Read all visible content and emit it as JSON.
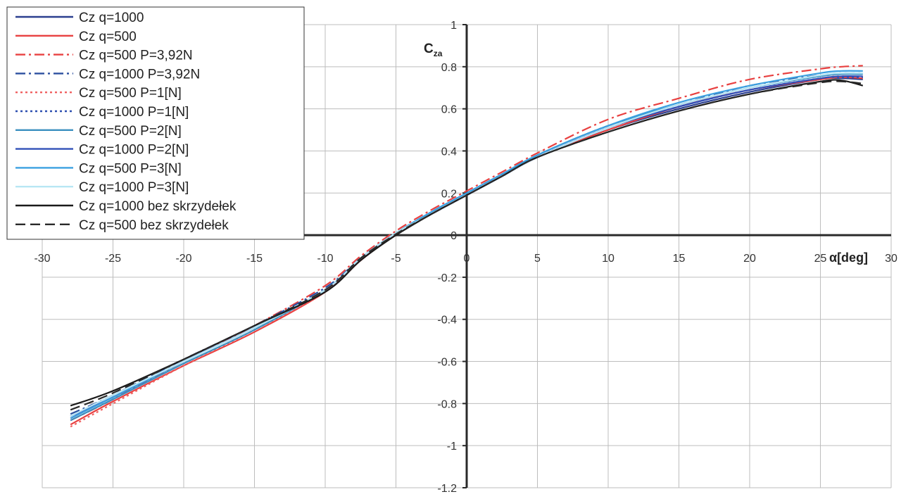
{
  "chart_data": {
    "type": "line",
    "title": "",
    "xlabel": "α[deg]",
    "ylabel": "C",
    "ylabel_sub": "za",
    "xlim": [
      -30,
      30
    ],
    "ylim": [
      -1.2,
      1
    ],
    "x_ticks": [
      -30,
      -25,
      -20,
      -15,
      -10,
      -5,
      0,
      5,
      10,
      15,
      20,
      25,
      30
    ],
    "y_ticks": [
      1,
      0.8,
      0.6,
      0.4,
      0.2,
      0,
      -0.2,
      -0.4,
      -0.6,
      -0.8,
      -1,
      -1.2
    ],
    "x_tick_labels": [
      "-30",
      "-25",
      "-20",
      "-15",
      "-10",
      "-5",
      "0",
      "5",
      "10",
      "15",
      "20",
      "25",
      "30"
    ],
    "y_tick_labels": [
      "1",
      "0.8",
      "0.6",
      "0.4",
      "0.2",
      "0",
      "-0.2",
      "-0.4",
      "-0.6",
      "-0.8",
      "-1",
      "-1.2"
    ],
    "grid": true,
    "legend_position": "top-left",
    "x": [
      -28,
      -25,
      -20,
      -15,
      -10,
      -7.5,
      -5,
      -2.5,
      0,
      2.5,
      5,
      10,
      15,
      20,
      25,
      26.5,
      28
    ],
    "series": [
      {
        "name": "Cz q=1000",
        "color": "#2b3f8f",
        "dash": "solid",
        "values": [
          -0.87,
          -0.77,
          -0.6,
          -0.44,
          -0.26,
          -0.11,
          0.01,
          0.1,
          0.19,
          0.28,
          0.37,
          0.5,
          0.6,
          0.68,
          0.74,
          0.745,
          0.74
        ]
      },
      {
        "name": "Cz q=500",
        "color": "#e84040",
        "dash": "solid",
        "values": [
          -0.9,
          -0.79,
          -0.62,
          -0.46,
          -0.27,
          -0.12,
          0.005,
          0.1,
          0.19,
          0.28,
          0.37,
          0.5,
          0.61,
          0.69,
          0.74,
          0.75,
          0.745
        ]
      },
      {
        "name": "Cz q=500 P=3,92N",
        "color": "#e84040",
        "dash": "dashdot",
        "values": [
          -0.88,
          -0.78,
          -0.6,
          -0.43,
          -0.24,
          -0.1,
          0.02,
          0.12,
          0.21,
          0.3,
          0.39,
          0.55,
          0.65,
          0.74,
          0.79,
          0.8,
          0.805
        ]
      },
      {
        "name": "Cz q=1000 P=3,92N",
        "color": "#2b4f9f",
        "dash": "dashdot",
        "values": [
          -0.85,
          -0.76,
          -0.59,
          -0.43,
          -0.25,
          -0.11,
          0.01,
          0.11,
          0.2,
          0.29,
          0.38,
          0.52,
          0.62,
          0.71,
          0.76,
          0.77,
          0.77
        ]
      },
      {
        "name": "Cz q=500 P=1[N]",
        "color": "#f06060",
        "dash": "dot",
        "values": [
          -0.91,
          -0.8,
          -0.62,
          -0.45,
          -0.27,
          -0.12,
          0.005,
          0.1,
          0.19,
          0.28,
          0.37,
          0.51,
          0.61,
          0.69,
          0.745,
          0.755,
          0.75
        ]
      },
      {
        "name": "Cz q=1000 P=1[N]",
        "color": "#2d4fb0",
        "dash": "dot",
        "values": [
          -0.86,
          -0.77,
          -0.6,
          -0.44,
          -0.26,
          -0.11,
          0.01,
          0.1,
          0.19,
          0.28,
          0.37,
          0.51,
          0.61,
          0.69,
          0.745,
          0.75,
          0.75
        ]
      },
      {
        "name": "Cz q=500 P=2[N]",
        "color": "#3a8fbf",
        "dash": "solid",
        "values": [
          -0.88,
          -0.78,
          -0.61,
          -0.45,
          -0.26,
          -0.11,
          0.01,
          0.1,
          0.19,
          0.28,
          0.38,
          0.52,
          0.62,
          0.7,
          0.755,
          0.765,
          0.765
        ]
      },
      {
        "name": "Cz q=1000 P=2[N]",
        "color": "#3050b8",
        "dash": "solid",
        "values": [
          -0.86,
          -0.77,
          -0.6,
          -0.44,
          -0.26,
          -0.11,
          0.01,
          0.1,
          0.19,
          0.28,
          0.37,
          0.51,
          0.61,
          0.69,
          0.745,
          0.755,
          0.755
        ]
      },
      {
        "name": "Cz q=500 P=3[N]",
        "color": "#3aa0e0",
        "dash": "solid",
        "values": [
          -0.87,
          -0.77,
          -0.6,
          -0.44,
          -0.26,
          -0.11,
          0.01,
          0.11,
          0.2,
          0.29,
          0.38,
          0.52,
          0.63,
          0.71,
          0.77,
          0.78,
          0.78
        ]
      },
      {
        "name": "Cz q=1000 P=3[N]",
        "color": "#b8e6f4",
        "dash": "solid",
        "values": [
          -0.86,
          -0.76,
          -0.6,
          -0.44,
          -0.26,
          -0.11,
          0.01,
          0.1,
          0.19,
          0.28,
          0.37,
          0.51,
          0.62,
          0.7,
          0.76,
          0.77,
          0.77
        ]
      },
      {
        "name": "Cz q=1000 bez skrzydełek",
        "color": "#1a1a1a",
        "dash": "solid",
        "values": [
          -0.81,
          -0.74,
          -0.59,
          -0.43,
          -0.27,
          -0.12,
          0.0,
          0.1,
          0.19,
          0.28,
          0.37,
          0.49,
          0.59,
          0.67,
          0.73,
          0.735,
          0.71
        ]
      },
      {
        "name": "Cz q=500 bez skrzydełek",
        "color": "#2a2a2a",
        "dash": "dash",
        "values": [
          -0.83,
          -0.75,
          -0.59,
          -0.43,
          -0.26,
          -0.11,
          0.005,
          0.1,
          0.19,
          0.28,
          0.37,
          0.49,
          0.59,
          0.67,
          0.725,
          0.73,
          0.72
        ]
      }
    ]
  }
}
